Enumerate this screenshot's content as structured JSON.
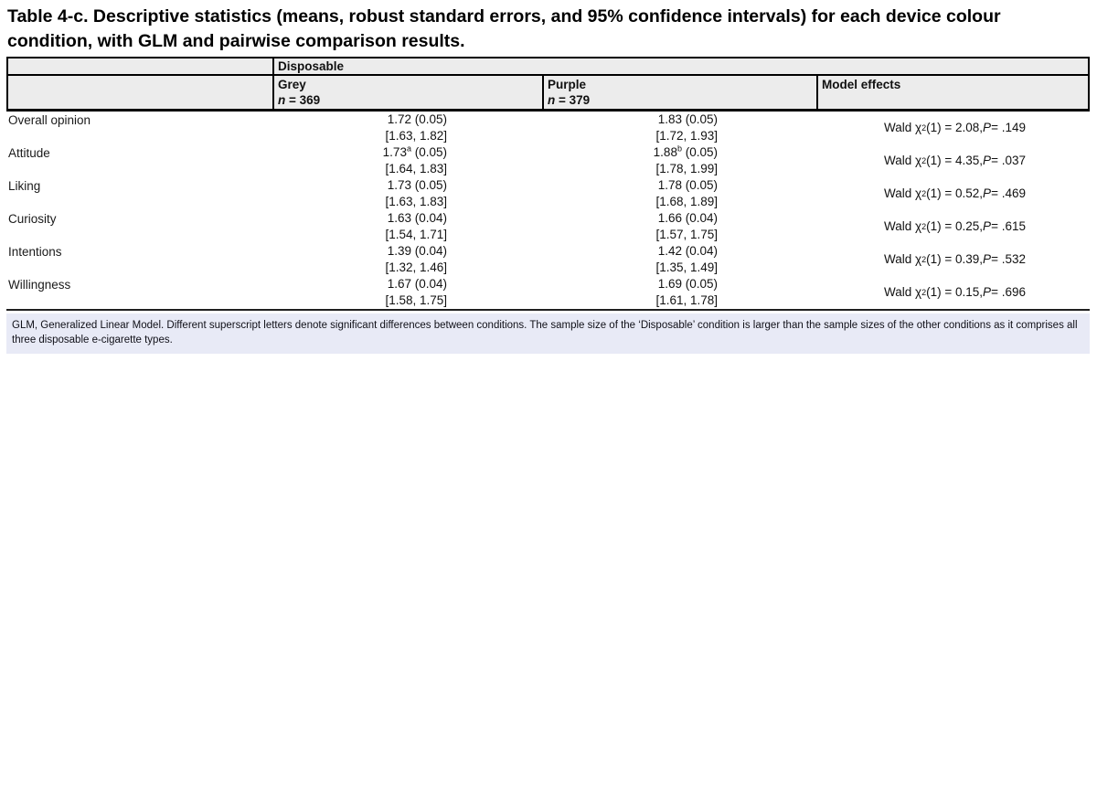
{
  "title": "Table 4-c. Descriptive statistics (means, robust standard errors, and 95% confidence intervals) for each device colour condition, with GLM and pairwise comparison results.",
  "table": {
    "group_header": "Disposable",
    "columns": {
      "grey": {
        "label": "Grey",
        "n_label": "n",
        "n_value": " = 369"
      },
      "purple": {
        "label": "Purple",
        "n_label": "n",
        "n_value": " = 379"
      },
      "model_effects": {
        "label": "Model effects"
      }
    },
    "wald_prefix": "Wald χ",
    "wald_sup": "2",
    "p_label": "P",
    "rows": [
      {
        "label": "Overall opinion",
        "grey_mean": "1.72",
        "grey_sup": "",
        "grey_se": " (0.05)",
        "grey_ci": "[1.63, 1.82]",
        "purple_mean": "1.83",
        "purple_sup": "",
        "purple_se": " (0.05)",
        "purple_ci": "[1.72, 1.93]",
        "wald_mid": "(1) = 2.08, ",
        "wald_p": " = .149"
      },
      {
        "label": "Attitude",
        "grey_mean": "1.73",
        "grey_sup": "a",
        "grey_se": " (0.05)",
        "grey_ci": "[1.64, 1.83]",
        "purple_mean": "1.88",
        "purple_sup": "b",
        "purple_se": " (0.05)",
        "purple_ci": "[1.78, 1.99]",
        "wald_mid": "(1) = 4.35, ",
        "wald_p": " = .037"
      },
      {
        "label": "Liking",
        "grey_mean": "1.73",
        "grey_sup": "",
        "grey_se": " (0.05)",
        "grey_ci": "[1.63, 1.83]",
        "purple_mean": "1.78",
        "purple_sup": "",
        "purple_se": " (0.05)",
        "purple_ci": "[1.68, 1.89]",
        "wald_mid": "(1) = 0.52, ",
        "wald_p": " = .469"
      },
      {
        "label": "Curiosity",
        "grey_mean": "1.63",
        "grey_sup": "",
        "grey_se": " (0.04)",
        "grey_ci": "[1.54, 1.71]",
        "purple_mean": "1.66",
        "purple_sup": "",
        "purple_se": " (0.04)",
        "purple_ci": "[1.57, 1.75]",
        "wald_mid": "(1) = 0.25, ",
        "wald_p": " = .615"
      },
      {
        "label": "Intentions",
        "grey_mean": "1.39",
        "grey_sup": "",
        "grey_se": " (0.04)",
        "grey_ci": "[1.32, 1.46]",
        "purple_mean": "1.42",
        "purple_sup": "",
        "purple_se": " (0.04)",
        "purple_ci": "[1.35, 1.49]",
        "wald_mid": "(1) = 0.39, ",
        "wald_p": " = .532"
      },
      {
        "label": "Willingness",
        "grey_mean": "1.67",
        "grey_sup": "",
        "grey_se": " (0.04)",
        "grey_ci": "[1.58, 1.75]",
        "purple_mean": "1.69",
        "purple_sup": "",
        "purple_se": " (0.05)",
        "purple_ci": "[1.61, 1.78]",
        "wald_mid": "(1) = 0.15, ",
        "wald_p": " = .696"
      }
    ],
    "footnote": "GLM, Generalized Linear Model. Different superscript letters denote significant differences between conditions. The sample size of the ‘Disposable’ condition is larger than the sample sizes of the other conditions as it comprises all three disposable e-cigarette types."
  },
  "colors": {
    "header_bg": "#ececec",
    "footnote_bg": "#e8eaf6",
    "border": "#000000",
    "text": "#111111"
  }
}
